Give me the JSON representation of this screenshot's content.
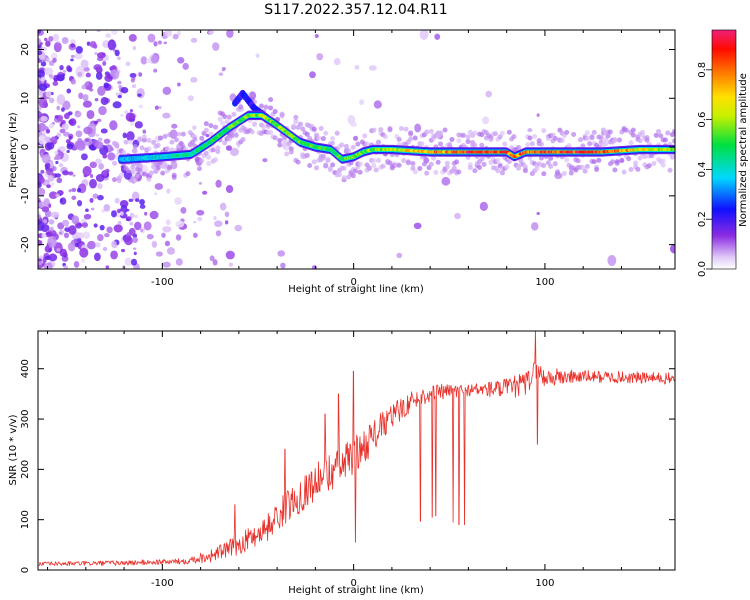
{
  "title": "S117.2022.357.12.04.R11",
  "chart_data": [
    {
      "type": "heatmap",
      "name": "spectrogram",
      "xlabel": "Height of straight line (km)",
      "ylabel": "Frequency (Hz)",
      "xlim": [
        -165,
        168
      ],
      "ylim": [
        -25,
        24
      ],
      "xticks": [
        -100,
        0,
        100
      ],
      "yticks": [
        -20,
        -10,
        0,
        10,
        20
      ],
      "xtick_labels": [
        "-100",
        "0",
        "100"
      ],
      "ytick_labels": [
        "-20",
        "-10",
        "0",
        "10",
        "20"
      ],
      "colorbar": {
        "label": "Normalized spectral amplitude",
        "range": [
          0.0,
          0.96
        ],
        "ticks": [
          0.0,
          0.2,
          0.4,
          0.6,
          0.8
        ],
        "tick_labels": [
          "0.0",
          "0.2",
          "0.4",
          "0.6",
          "0.8"
        ]
      },
      "ridge": {
        "x": [
          -120,
          -100,
          -85,
          -75,
          -65,
          -55,
          -48,
          -42,
          -35,
          -28,
          -20,
          -12,
          -6,
          0,
          5,
          10,
          20,
          40,
          60,
          80,
          84,
          90,
          110,
          130,
          150,
          168
        ],
        "y": [
          -2.5,
          -2,
          -1.5,
          1,
          4,
          6.5,
          6.5,
          5,
          3,
          1,
          0,
          -0.5,
          -2.5,
          -2,
          -1,
          -0.5,
          -0.5,
          -1,
          -1,
          -1,
          -2,
          -1,
          -1,
          -1,
          -0.5,
          -0.5
        ],
        "amp": [
          0.35,
          0.4,
          0.45,
          0.5,
          0.55,
          0.6,
          0.62,
          0.6,
          0.58,
          0.55,
          0.55,
          0.5,
          0.55,
          0.62,
          0.6,
          0.58,
          0.65,
          0.8,
          0.9,
          0.85,
          0.8,
          0.85,
          0.9,
          0.88,
          0.7,
          0.6
        ]
      },
      "secondary_track": {
        "x": [
          -62,
          -58,
          -52,
          -45
        ],
        "y": [
          9,
          11,
          8,
          6
        ]
      }
    },
    {
      "type": "line",
      "name": "snr",
      "xlabel": "Height of straight line (km)",
      "ylabel": "SNR (10 * v/v)",
      "xlim": [
        -165,
        168
      ],
      "ylim": [
        0,
        475
      ],
      "xticks": [
        -100,
        0,
        100
      ],
      "yticks": [
        0,
        100,
        200,
        300,
        400
      ],
      "xtick_labels": [
        "-100",
        "0",
        "100"
      ],
      "ytick_labels": [
        "0",
        "100",
        "200",
        "300",
        "400"
      ],
      "color": "#e8302a",
      "trend": {
        "x": [
          -165,
          -120,
          -90,
          -75,
          -60,
          -45,
          -35,
          -20,
          -10,
          0,
          10,
          20,
          30,
          40,
          60,
          80,
          90,
          95,
          100,
          120,
          168
        ],
        "y": [
          12,
          14,
          17,
          28,
          50,
          85,
          125,
          175,
          200,
          225,
          265,
          305,
          335,
          352,
          358,
          360,
          370,
          395,
          382,
          385,
          380
        ]
      },
      "noise": {
        "x": [
          -165,
          -90,
          -60,
          -30,
          0,
          30,
          60,
          90,
          120,
          168
        ],
        "amp": [
          4,
          6,
          20,
          35,
          40,
          20,
          12,
          25,
          12,
          12
        ]
      },
      "spikes": [
        {
          "x": -62,
          "y": 130
        },
        {
          "x": -36,
          "y": 240
        },
        {
          "x": -15,
          "y": 310
        },
        {
          "x": -8,
          "y": 350
        },
        {
          "x": 0,
          "y": 395
        },
        {
          "x": 1,
          "y": 55
        },
        {
          "x": 35,
          "y": 97
        },
        {
          "x": 41,
          "y": 105
        },
        {
          "x": 43,
          "y": 108
        },
        {
          "x": 52,
          "y": 95
        },
        {
          "x": 55,
          "y": 90
        },
        {
          "x": 58,
          "y": 90
        },
        {
          "x": 95,
          "y": 475
        },
        {
          "x": 96,
          "y": 250
        }
      ]
    }
  ]
}
